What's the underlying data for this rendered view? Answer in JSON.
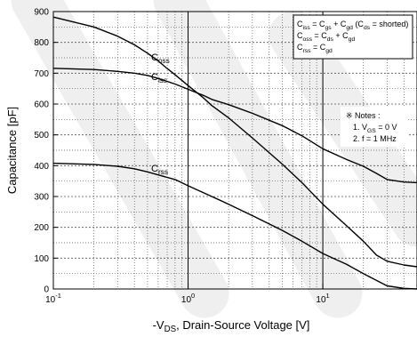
{
  "chart_data": {
    "type": "line",
    "title": "",
    "xlabel_parts": {
      "pre": "-V",
      "sub": "DS",
      "post": ", Drain-Source Voltage [V]"
    },
    "ylabel": "Capacitance [pF]",
    "x_scale": "log",
    "xlim": [
      0.1,
      50
    ],
    "ylim": [
      0,
      900
    ],
    "y_ticks": [
      0,
      100,
      200,
      300,
      400,
      500,
      600,
      700,
      800,
      900
    ],
    "x_ticks": [
      {
        "value": 0.1,
        "base": "10",
        "exp": "-1"
      },
      {
        "value": 1,
        "base": "10",
        "exp": "0"
      },
      {
        "value": 10,
        "base": "10",
        "exp": "1"
      }
    ],
    "grid": true,
    "series": [
      {
        "name": "Coss",
        "label_parts": {
          "main": "C",
          "sub": "oss"
        },
        "points": [
          [
            0.1,
            882
          ],
          [
            0.2,
            850
          ],
          [
            0.3,
            820
          ],
          [
            0.4,
            792
          ],
          [
            0.5,
            765
          ],
          [
            0.6,
            740
          ],
          [
            0.7,
            715
          ],
          [
            0.8,
            695
          ],
          [
            1,
            660
          ],
          [
            1.3,
            620
          ],
          [
            1.5,
            595
          ],
          [
            2,
            555
          ],
          [
            3,
            490
          ],
          [
            5,
            405
          ],
          [
            7,
            345
          ],
          [
            10,
            275
          ],
          [
            15,
            205
          ],
          [
            20,
            155
          ],
          [
            25,
            110
          ],
          [
            30,
            90
          ],
          [
            40,
            78
          ],
          [
            50,
            72
          ]
        ]
      },
      {
        "name": "Ciss",
        "label_parts": {
          "main": "C",
          "sub": "iss"
        },
        "points": [
          [
            0.1,
            716
          ],
          [
            0.2,
            712
          ],
          [
            0.3,
            706
          ],
          [
            0.4,
            700
          ],
          [
            0.5,
            693
          ],
          [
            0.6,
            683
          ],
          [
            0.8,
            665
          ],
          [
            1,
            648
          ],
          [
            1.3,
            628
          ],
          [
            1.5,
            615
          ],
          [
            2,
            598
          ],
          [
            3,
            570
          ],
          [
            5,
            530
          ],
          [
            7,
            497
          ],
          [
            10,
            455
          ],
          [
            15,
            420
          ],
          [
            20,
            398
          ],
          [
            25,
            375
          ],
          [
            30,
            355
          ],
          [
            40,
            347
          ],
          [
            50,
            345
          ]
        ]
      },
      {
        "name": "Crss",
        "label_parts": {
          "main": "C",
          "sub": "rss"
        },
        "points": [
          [
            0.1,
            408
          ],
          [
            0.2,
            404
          ],
          [
            0.3,
            398
          ],
          [
            0.4,
            390
          ],
          [
            0.5,
            380
          ],
          [
            0.6,
            370
          ],
          [
            0.8,
            355
          ],
          [
            1,
            335
          ],
          [
            1.5,
            300
          ],
          [
            2,
            275
          ],
          [
            3,
            238
          ],
          [
            5,
            190
          ],
          [
            7,
            155
          ],
          [
            10,
            115
          ],
          [
            15,
            80
          ],
          [
            20,
            50
          ],
          [
            30,
            10
          ],
          [
            40,
            2
          ],
          [
            50,
            0
          ]
        ]
      }
    ],
    "legend_box": {
      "lines": [
        {
          "parts": [
            [
              "C",
              ""
            ],
            [
              "iss",
              "sub"
            ],
            [
              " = C",
              ""
            ],
            [
              "gs",
              "sub"
            ],
            [
              " + C",
              ""
            ],
            [
              "gd",
              "sub"
            ],
            [
              " (C",
              ""
            ],
            [
              "ds",
              "sub"
            ],
            [
              " = shorted)",
              ""
            ]
          ]
        },
        {
          "parts": [
            [
              "C",
              ""
            ],
            [
              "oss",
              "sub"
            ],
            [
              " = C",
              ""
            ],
            [
              "ds",
              "sub"
            ],
            [
              " + C",
              ""
            ],
            [
              "gd",
              "sub"
            ]
          ]
        },
        {
          "parts": [
            [
              "C",
              ""
            ],
            [
              "rss",
              "sub"
            ],
            [
              " = C",
              ""
            ],
            [
              "gd",
              "sub"
            ]
          ]
        }
      ]
    },
    "notes": {
      "title": "※ Notes :",
      "lines": [
        {
          "parts": [
            [
              "1. V",
              ""
            ],
            [
              "GS",
              "sub"
            ],
            [
              " = 0 V",
              ""
            ]
          ]
        },
        {
          "parts": [
            [
              "2. f = 1 MHz",
              ""
            ]
          ]
        }
      ]
    },
    "colors": {
      "line": "#000000",
      "grid": "#555555",
      "watermark": "#efefef"
    }
  }
}
